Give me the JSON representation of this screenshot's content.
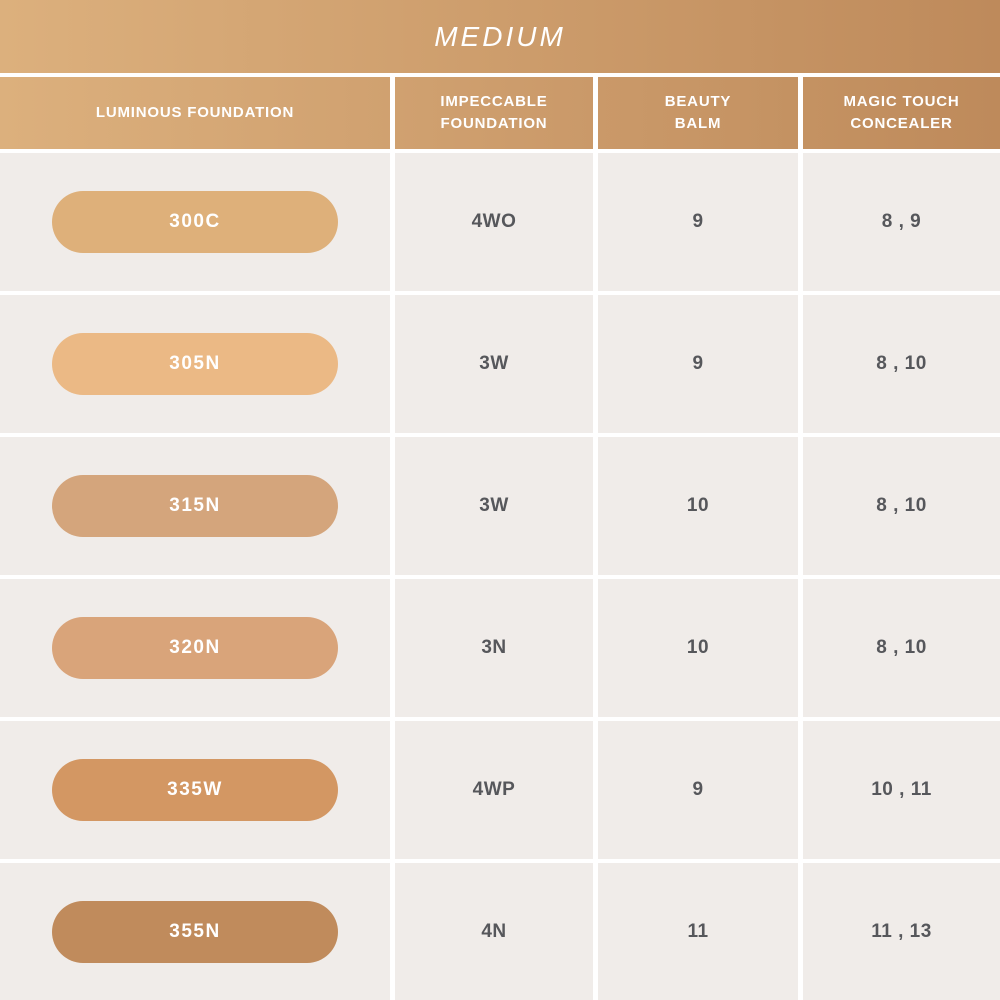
{
  "title": "MEDIUM",
  "columns": {
    "col1": "LUMINOUS FOUNDATION",
    "col2": "IMPECCABLE\nFOUNDATION",
    "col3": "BEAUTY\nBALM",
    "col4": "MAGIC TOUCH\nCONCEALER"
  },
  "rows": [
    {
      "shade": "300C",
      "swatch_color": "#DEB07A",
      "impeccable_foundation": "4WO",
      "beauty_balm": "9",
      "magic_touch_concealer": "8 , 9"
    },
    {
      "shade": "305N",
      "swatch_color": "#EBB985",
      "impeccable_foundation": "3W",
      "beauty_balm": "9",
      "magic_touch_concealer": "8 , 10"
    },
    {
      "shade": "315N",
      "swatch_color": "#D4A57C",
      "impeccable_foundation": "3W",
      "beauty_balm": "10",
      "magic_touch_concealer": "8 , 10"
    },
    {
      "shade": "320N",
      "swatch_color": "#D9A47A",
      "impeccable_foundation": "3N",
      "beauty_balm": "10",
      "magic_touch_concealer": "8 , 10"
    },
    {
      "shade": "335W",
      "swatch_color": "#D39763",
      "impeccable_foundation": "4WP",
      "beauty_balm": "9",
      "magic_touch_concealer": "10 , 11"
    },
    {
      "shade": "355N",
      "swatch_color": "#C08B5C",
      "impeccable_foundation": "4N",
      "beauty_balm": "11",
      "magic_touch_concealer": "11 , 13"
    }
  ],
  "colors": {
    "banner_gradient_left": "#DCB07D",
    "banner_gradient_right": "#BE8A5B",
    "cell_background": "#F0ECE9",
    "cell_text": "#56575B",
    "header_text": "#FFFFFF"
  },
  "chart_data": {
    "type": "table",
    "title": "MEDIUM",
    "columns": [
      "LUMINOUS FOUNDATION",
      "IMPECCABLE FOUNDATION",
      "BEAUTY BALM",
      "MAGIC TOUCH CONCEALER"
    ],
    "rows": [
      [
        "300C",
        "4WO",
        "9",
        "8 , 9"
      ],
      [
        "305N",
        "3W",
        "9",
        "8 , 10"
      ],
      [
        "315N",
        "3W",
        "10",
        "8 , 10"
      ],
      [
        "320N",
        "3N",
        "10",
        "8 , 10"
      ],
      [
        "335W",
        "4WP",
        "9",
        "10 , 11"
      ],
      [
        "355N",
        "4N",
        "11",
        "11 , 13"
      ]
    ],
    "swatch_colors": [
      "#DEB07A",
      "#EBB985",
      "#D4A57C",
      "#D9A47A",
      "#D39763",
      "#C08B5C"
    ]
  }
}
